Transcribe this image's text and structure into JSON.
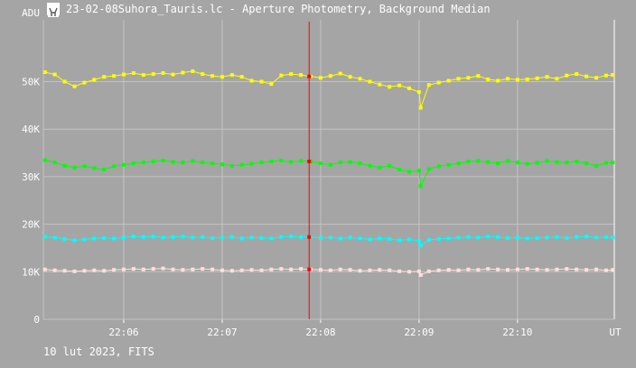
{
  "window": {
    "title": "23-02-08Suhora_Tauris.lc - Aperture Photometry, Background Median",
    "footer": "10 lut 2023, FITS"
  },
  "colors": {
    "background": "#a5a5a5",
    "grid": "#c4c4c4",
    "axis_text": "#ffffff",
    "cursor": "#ff0000"
  },
  "chart_data": {
    "type": "scatter",
    "title": "",
    "xlabel": "UT",
    "ylabel": "ADU",
    "xlim": [
      "22:05:11",
      "22:10:59"
    ],
    "ylim": [
      0,
      63000
    ],
    "x_ticks": [
      "22:06",
      "22:07",
      "22:08",
      "22:09",
      "22:10"
    ],
    "y_ticks": [
      "0",
      "10K",
      "20K",
      "30K",
      "40K",
      "50K"
    ],
    "y_tick_values": [
      0,
      10000,
      20000,
      30000,
      40000,
      50000
    ],
    "grid": true,
    "cursor_time": "22:07:53",
    "series": [
      {
        "color": "#ffff00",
        "points": [
          [
            "22:05:12",
            52000
          ],
          [
            "22:05:18",
            51500
          ],
          [
            "22:05:24",
            50000
          ],
          [
            "22:05:30",
            49000
          ],
          [
            "22:05:36",
            49800
          ],
          [
            "22:05:42",
            50400
          ],
          [
            "22:05:48",
            51000
          ],
          [
            "22:05:54",
            51200
          ],
          [
            "22:06:00",
            51500
          ],
          [
            "22:06:06",
            51800
          ],
          [
            "22:06:12",
            51400
          ],
          [
            "22:06:18",
            51600
          ],
          [
            "22:06:24",
            51800
          ],
          [
            "22:06:30",
            51500
          ],
          [
            "22:06:36",
            51900
          ],
          [
            "22:06:42",
            52200
          ],
          [
            "22:06:48",
            51600
          ],
          [
            "22:06:54",
            51200
          ],
          [
            "22:07:00",
            51000
          ],
          [
            "22:07:06",
            51400
          ],
          [
            "22:07:12",
            51000
          ],
          [
            "22:07:18",
            50200
          ],
          [
            "22:07:24",
            50000
          ],
          [
            "22:07:30",
            49500
          ],
          [
            "22:07:36",
            51300
          ],
          [
            "22:07:42",
            51600
          ],
          [
            "22:07:48",
            51400
          ],
          [
            "22:07:54",
            51100
          ],
          [
            "22:08:00",
            50800
          ],
          [
            "22:08:06",
            51200
          ],
          [
            "22:08:12",
            51700
          ],
          [
            "22:08:18",
            51000
          ],
          [
            "22:08:24",
            50600
          ],
          [
            "22:08:30",
            50000
          ],
          [
            "22:08:36",
            49400
          ],
          [
            "22:08:42",
            48900
          ],
          [
            "22:08:48",
            49200
          ],
          [
            "22:08:54",
            48600
          ],
          [
            "22:09:00",
            47800
          ],
          [
            "22:09:01",
            44500
          ],
          [
            "22:09:06",
            49300
          ],
          [
            "22:09:12",
            49800
          ],
          [
            "22:09:18",
            50200
          ],
          [
            "22:09:24",
            50600
          ],
          [
            "22:09:30",
            50800
          ],
          [
            "22:09:36",
            51200
          ],
          [
            "22:09:42",
            50500
          ],
          [
            "22:09:48",
            50200
          ],
          [
            "22:09:54",
            50600
          ],
          [
            "22:10:00",
            50400
          ],
          [
            "22:10:06",
            50500
          ],
          [
            "22:10:12",
            50700
          ],
          [
            "22:10:18",
            51000
          ],
          [
            "22:10:24",
            50600
          ],
          [
            "22:10:30",
            51300
          ],
          [
            "22:10:36",
            51600
          ],
          [
            "22:10:42",
            51100
          ],
          [
            "22:10:48",
            50800
          ],
          [
            "22:10:54",
            51300
          ],
          [
            "22:10:58",
            51400
          ]
        ]
      },
      {
        "color": "#00ff00",
        "points": [
          [
            "22:05:12",
            33500
          ],
          [
            "22:05:18",
            33000
          ],
          [
            "22:05:24",
            32300
          ],
          [
            "22:05:30",
            31900
          ],
          [
            "22:05:36",
            32200
          ],
          [
            "22:05:42",
            31800
          ],
          [
            "22:05:48",
            31500
          ],
          [
            "22:05:54",
            32200
          ],
          [
            "22:06:00",
            32500
          ],
          [
            "22:06:06",
            32800
          ],
          [
            "22:06:12",
            33000
          ],
          [
            "22:06:18",
            33200
          ],
          [
            "22:06:24",
            33400
          ],
          [
            "22:06:30",
            33100
          ],
          [
            "22:06:36",
            33000
          ],
          [
            "22:06:42",
            33300
          ],
          [
            "22:06:48",
            33000
          ],
          [
            "22:06:54",
            32800
          ],
          [
            "22:07:00",
            32600
          ],
          [
            "22:07:06",
            32300
          ],
          [
            "22:07:12",
            32500
          ],
          [
            "22:07:18",
            32700
          ],
          [
            "22:07:24",
            33000
          ],
          [
            "22:07:30",
            33200
          ],
          [
            "22:07:36",
            33400
          ],
          [
            "22:07:42",
            33100
          ],
          [
            "22:07:48",
            33300
          ],
          [
            "22:07:54",
            33200
          ],
          [
            "22:08:00",
            32800
          ],
          [
            "22:08:06",
            32500
          ],
          [
            "22:08:12",
            33000
          ],
          [
            "22:08:18",
            33100
          ],
          [
            "22:08:24",
            32800
          ],
          [
            "22:08:30",
            32300
          ],
          [
            "22:08:36",
            31900
          ],
          [
            "22:08:42",
            32300
          ],
          [
            "22:08:48",
            31500
          ],
          [
            "22:08:54",
            31000
          ],
          [
            "22:09:00",
            31300
          ],
          [
            "22:09:01",
            28000
          ],
          [
            "22:09:06",
            31600
          ],
          [
            "22:09:12",
            32200
          ],
          [
            "22:09:18",
            32500
          ],
          [
            "22:09:24",
            32800
          ],
          [
            "22:09:30",
            33200
          ],
          [
            "22:09:36",
            33300
          ],
          [
            "22:09:42",
            33100
          ],
          [
            "22:09:48",
            32800
          ],
          [
            "22:09:54",
            33300
          ],
          [
            "22:10:00",
            33000
          ],
          [
            "22:10:06",
            32700
          ],
          [
            "22:10:12",
            32900
          ],
          [
            "22:10:18",
            33300
          ],
          [
            "22:10:24",
            33100
          ],
          [
            "22:10:30",
            33000
          ],
          [
            "22:10:36",
            33200
          ],
          [
            "22:10:42",
            32800
          ],
          [
            "22:10:48",
            32300
          ],
          [
            "22:10:54",
            32900
          ],
          [
            "22:10:58",
            33000
          ]
        ]
      },
      {
        "color": "#00ffff",
        "points": [
          [
            "22:05:12",
            17400
          ],
          [
            "22:05:18",
            17200
          ],
          [
            "22:05:24",
            16900
          ],
          [
            "22:05:30",
            16600
          ],
          [
            "22:05:36",
            16800
          ],
          [
            "22:05:42",
            17000
          ],
          [
            "22:05:48",
            17100
          ],
          [
            "22:05:54",
            17000
          ],
          [
            "22:06:00",
            17200
          ],
          [
            "22:06:06",
            17400
          ],
          [
            "22:06:12",
            17300
          ],
          [
            "22:06:18",
            17400
          ],
          [
            "22:06:24",
            17200
          ],
          [
            "22:06:30",
            17300
          ],
          [
            "22:06:36",
            17400
          ],
          [
            "22:06:42",
            17200
          ],
          [
            "22:06:48",
            17300
          ],
          [
            "22:06:54",
            17100
          ],
          [
            "22:07:00",
            17200
          ],
          [
            "22:07:06",
            17300
          ],
          [
            "22:07:12",
            17000
          ],
          [
            "22:07:18",
            17200
          ],
          [
            "22:07:24",
            17100
          ],
          [
            "22:07:30",
            17000
          ],
          [
            "22:07:36",
            17300
          ],
          [
            "22:07:42",
            17400
          ],
          [
            "22:07:48",
            17300
          ],
          [
            "22:07:54",
            17300
          ],
          [
            "22:08:00",
            17100
          ],
          [
            "22:08:06",
            17200
          ],
          [
            "22:08:12",
            17000
          ],
          [
            "22:08:18",
            17200
          ],
          [
            "22:08:24",
            17000
          ],
          [
            "22:08:30",
            16800
          ],
          [
            "22:08:36",
            17000
          ],
          [
            "22:08:42",
            16900
          ],
          [
            "22:08:48",
            16600
          ],
          [
            "22:08:54",
            16800
          ],
          [
            "22:09:00",
            16500
          ],
          [
            "22:09:01",
            15500
          ],
          [
            "22:09:06",
            16700
          ],
          [
            "22:09:12",
            16900
          ],
          [
            "22:09:18",
            17000
          ],
          [
            "22:09:24",
            17200
          ],
          [
            "22:09:30",
            17300
          ],
          [
            "22:09:36",
            17200
          ],
          [
            "22:09:42",
            17400
          ],
          [
            "22:09:48",
            17300
          ],
          [
            "22:09:54",
            17100
          ],
          [
            "22:10:00",
            17200
          ],
          [
            "22:10:06",
            17000
          ],
          [
            "22:10:12",
            17100
          ],
          [
            "22:10:18",
            17200
          ],
          [
            "22:10:24",
            17300
          ],
          [
            "22:10:30",
            17100
          ],
          [
            "22:10:36",
            17300
          ],
          [
            "22:10:42",
            17400
          ],
          [
            "22:10:48",
            17200
          ],
          [
            "22:10:54",
            17300
          ],
          [
            "22:10:58",
            17200
          ]
        ]
      },
      {
        "color": "#ffdede",
        "points": [
          [
            "22:05:12",
            10500
          ],
          [
            "22:05:18",
            10300
          ],
          [
            "22:05:24",
            10200
          ],
          [
            "22:05:30",
            10100
          ],
          [
            "22:05:36",
            10200
          ],
          [
            "22:05:42",
            10300
          ],
          [
            "22:05:48",
            10200
          ],
          [
            "22:05:54",
            10400
          ],
          [
            "22:06:00",
            10500
          ],
          [
            "22:06:06",
            10600
          ],
          [
            "22:06:12",
            10500
          ],
          [
            "22:06:18",
            10600
          ],
          [
            "22:06:24",
            10700
          ],
          [
            "22:06:30",
            10500
          ],
          [
            "22:06:36",
            10400
          ],
          [
            "22:06:42",
            10500
          ],
          [
            "22:06:48",
            10600
          ],
          [
            "22:06:54",
            10500
          ],
          [
            "22:07:00",
            10300
          ],
          [
            "22:07:06",
            10200
          ],
          [
            "22:07:12",
            10300
          ],
          [
            "22:07:18",
            10400
          ],
          [
            "22:07:24",
            10300
          ],
          [
            "22:07:30",
            10500
          ],
          [
            "22:07:36",
            10600
          ],
          [
            "22:07:42",
            10500
          ],
          [
            "22:07:48",
            10600
          ],
          [
            "22:07:54",
            10500
          ],
          [
            "22:08:00",
            10400
          ],
          [
            "22:08:06",
            10300
          ],
          [
            "22:08:12",
            10500
          ],
          [
            "22:08:18",
            10400
          ],
          [
            "22:08:24",
            10200
          ],
          [
            "22:08:30",
            10300
          ],
          [
            "22:08:36",
            10400
          ],
          [
            "22:08:42",
            10300
          ],
          [
            "22:08:48",
            10100
          ],
          [
            "22:08:54",
            10000
          ],
          [
            "22:09:00",
            10100
          ],
          [
            "22:09:01",
            9300
          ],
          [
            "22:09:06",
            10100
          ],
          [
            "22:09:12",
            10300
          ],
          [
            "22:09:18",
            10400
          ],
          [
            "22:09:24",
            10300
          ],
          [
            "22:09:30",
            10500
          ],
          [
            "22:09:36",
            10400
          ],
          [
            "22:09:42",
            10600
          ],
          [
            "22:09:48",
            10500
          ],
          [
            "22:09:54",
            10400
          ],
          [
            "22:10:00",
            10500
          ],
          [
            "22:10:06",
            10600
          ],
          [
            "22:10:12",
            10500
          ],
          [
            "22:10:18",
            10400
          ],
          [
            "22:10:24",
            10500
          ],
          [
            "22:10:30",
            10600
          ],
          [
            "22:10:36",
            10500
          ],
          [
            "22:10:42",
            10400
          ],
          [
            "22:10:48",
            10500
          ],
          [
            "22:10:54",
            10300
          ],
          [
            "22:10:58",
            10400
          ]
        ]
      }
    ]
  }
}
